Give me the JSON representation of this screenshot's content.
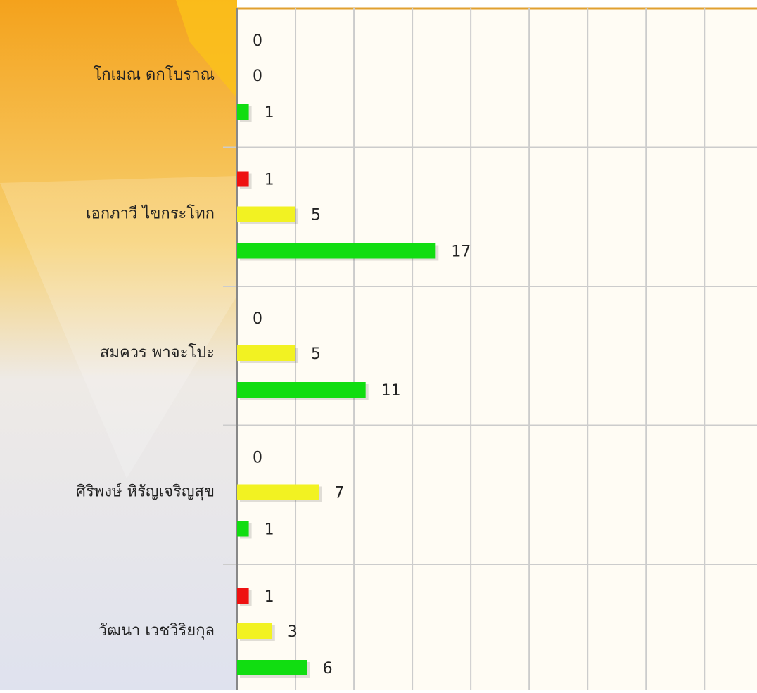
{
  "chart_data": {
    "type": "hbar",
    "categories": [
      "โกเมณ ดกโบราณ",
      "เอกภาวี ไขกระโทก",
      "สมควร พาจะโปะ",
      "ศิริพงษ์ หิรัญเจริญสุข",
      "วัฒนา เวชวิริยกุล"
    ],
    "series": [
      {
        "color": "#ee1111",
        "values": [
          0,
          1,
          0,
          0,
          1
        ]
      },
      {
        "color": "#f2f222",
        "values": [
          0,
          5,
          5,
          7,
          3
        ]
      },
      {
        "color": "#11dd11",
        "values": [
          1,
          17,
          11,
          1,
          6
        ]
      }
    ],
    "xlim": [
      0,
      44.5
    ],
    "xticks": [
      0,
      5,
      10,
      15,
      20,
      25,
      30,
      35,
      40
    ],
    "grid": true
  }
}
